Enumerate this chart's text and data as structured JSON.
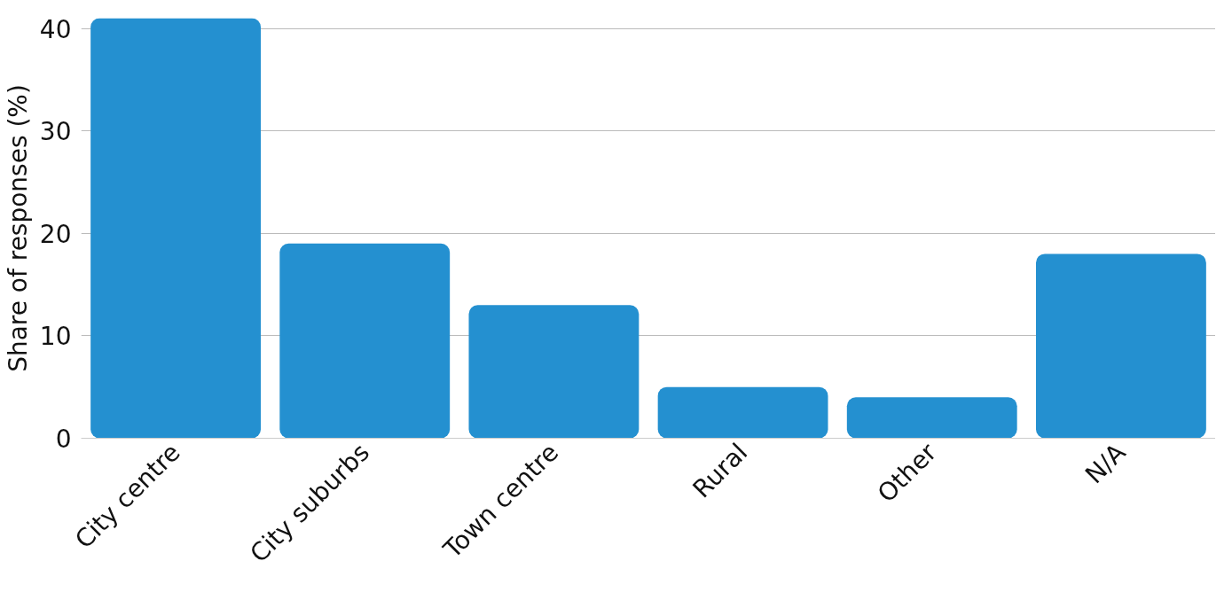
{
  "chart_data": {
    "type": "bar",
    "ylabel": "Share of responses (%)",
    "categories": [
      "City centre",
      "City suburbs",
      "Town centre",
      "Rural",
      "Other",
      "N/A"
    ],
    "values": [
      41,
      19,
      13,
      5,
      4,
      18
    ],
    "color": "#2490d0",
    "ylim": [
      0,
      41
    ],
    "yticks": [
      0,
      10,
      20,
      30,
      40
    ],
    "grid": "y"
  }
}
